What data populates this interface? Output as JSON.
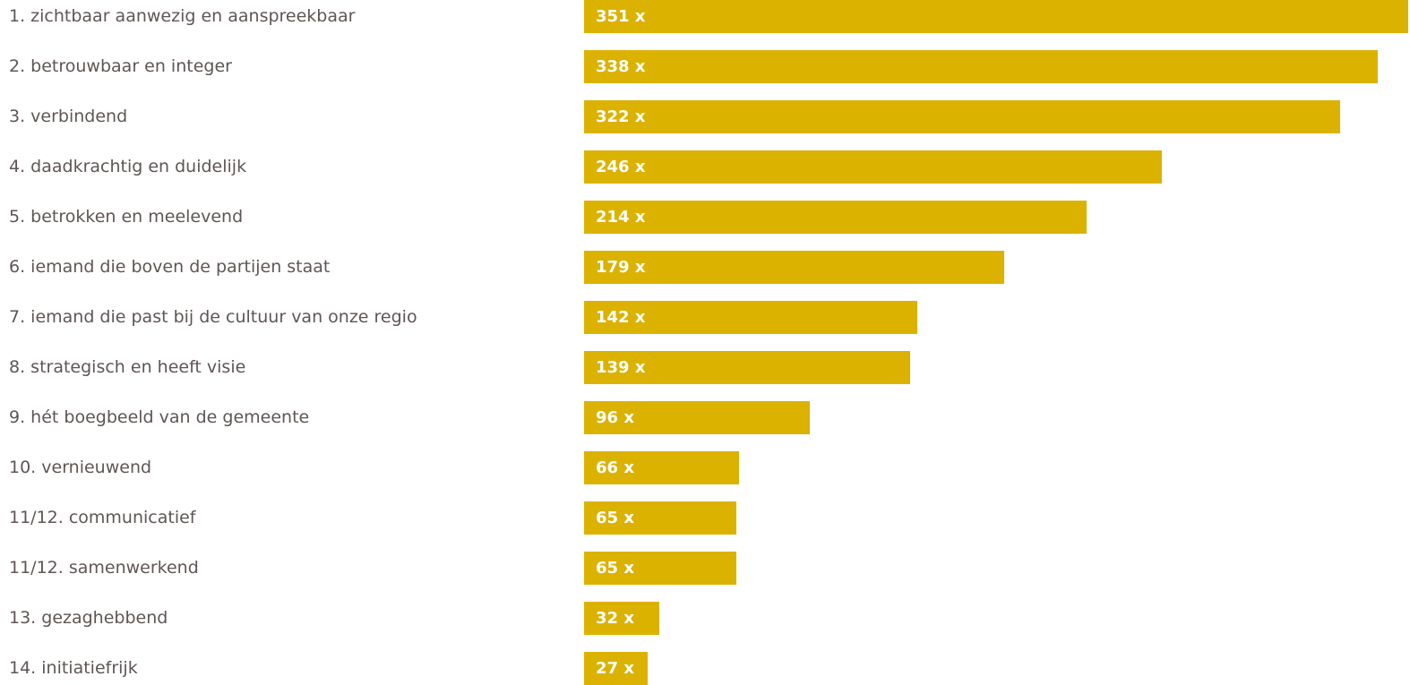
{
  "chart_data": {
    "type": "bar",
    "orientation": "horizontal",
    "categories": [
      "1. zichtbaar aanwezig en aanspreekbaar",
      "2. betrouwbaar en integer",
      "3. verbindend",
      "4. daadkrachtig en duidelijk",
      "5. betrokken en meelevend",
      "6. iemand die boven de partijen staat",
      "7. iemand die past bij de cultuur van onze regio",
      "8. strategisch en heeft visie",
      "9. hét boegbeeld van de gemeente",
      "10. vernieuwend",
      "11/12. communicatief",
      "11/12. samenwerkend",
      "13. gezaghebbend",
      "14. initiatiefrijk"
    ],
    "values": [
      351,
      338,
      322,
      246,
      214,
      179,
      142,
      139,
      96,
      66,
      65,
      65,
      32,
      27
    ],
    "value_labels": [
      "351 x",
      "338 x",
      "322 x",
      "246 x",
      "214 x",
      "179 x",
      "142 x",
      "139 x",
      "96 x",
      "66 x",
      "65 x",
      "65 x",
      "32 x",
      "27 x"
    ],
    "title": "",
    "xlabel": "",
    "ylabel": "",
    "xlim": [
      0,
      351
    ],
    "grid": false,
    "legend": "none",
    "bar_color": "#dcb200",
    "label_color": "#5f5654",
    "value_label_color": "#ffffff"
  }
}
